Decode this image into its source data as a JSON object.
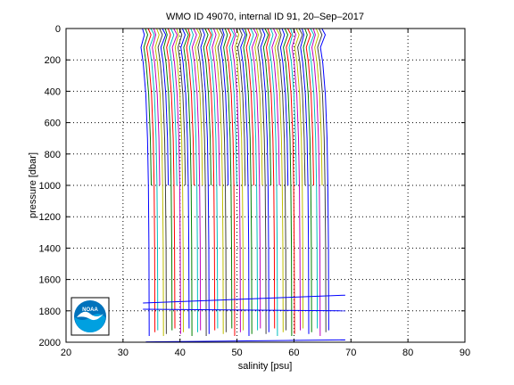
{
  "chart_data": {
    "type": "line",
    "title": "WMO ID 49070, internal ID 91, 20–Sep–2017",
    "xlabel": "salinity [psu]",
    "ylabel": "pressure [dbar]",
    "xlim": [
      20,
      90
    ],
    "ylim": [
      0,
      2000
    ],
    "y_reversed": true,
    "grid": true,
    "grid_style": "dotted",
    "xticks": [
      20,
      30,
      40,
      50,
      60,
      70,
      80,
      90
    ],
    "yticks": [
      0,
      200,
      400,
      600,
      800,
      1000,
      1200,
      1400,
      1600,
      1800,
      2000
    ],
    "xtick_labels": [
      "20",
      "30",
      "40",
      "50",
      "60",
      "70",
      "80",
      "90"
    ],
    "ytick_labels": [
      "0",
      "200",
      "400",
      "600",
      "800",
      "1000",
      "1200",
      "1400",
      "1600",
      "1800",
      "2000"
    ],
    "profile_count": 64,
    "profile_offset_psu": 0.5,
    "first_profile_surface_salinity": 33.4,
    "shallow_profile_max_pressure": 1000,
    "deep_profile_max_pressure": 1960,
    "series_colors": [
      "#0000ff",
      "#008000",
      "#ff0000",
      "#00bfbf",
      "#bf00bf",
      "#bfbf00",
      "#404040"
    ],
    "logo": "NOAA",
    "logo_colors": {
      "outer_ring": "#0072bc",
      "bird": "#ffffff",
      "lower": "#00a0e0",
      "text": "#ffffff"
    }
  }
}
